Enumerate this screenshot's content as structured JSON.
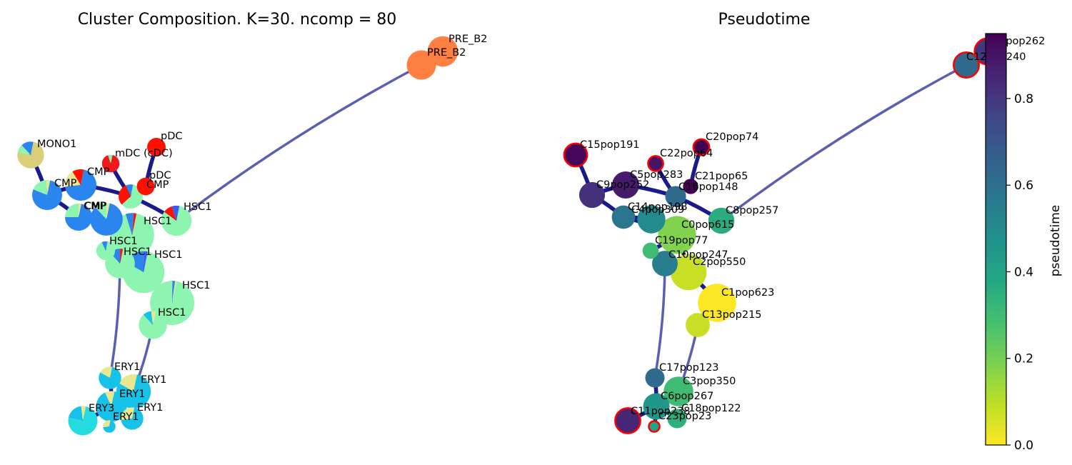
{
  "chart_data": [
    {
      "type": "graph",
      "title": "Cluster Composition. K=30. ncomp = 80",
      "legend_colors": {
        "HSC1": "#8df5b0",
        "CMP": "#2a86ee",
        "ERY1": "#16c2e8",
        "ERY3": "#26dbe0",
        "MONO1": "#d8cf78",
        "mDC (cDC)": "#f01818",
        "pDC": "#ff1000",
        "PRE_B2": "#ff8040",
        "other_blue": "#3a5cf0",
        "other_yellow": "#e8e890"
      },
      "nodes": [
        {
          "id": "C0",
          "label": "HSC1",
          "size": 615,
          "composition": [
            [
              "HSC1",
              0.92
            ],
            [
              "CMP",
              0.06
            ],
            [
              "pDC",
              0.02
            ]
          ]
        },
        {
          "id": "C1",
          "label": "HSC1",
          "size": 623,
          "composition": [
            [
              "HSC1",
              0.97
            ],
            [
              "CMP",
              0.02
            ],
            [
              "other_yellow",
              0.01
            ]
          ]
        },
        {
          "id": "C2",
          "label": "HSC1",
          "size": 550,
          "composition": [
            [
              "HSC1",
              0.8
            ],
            [
              "CMP",
              0.17
            ],
            [
              "other_blue",
              0.03
            ]
          ]
        },
        {
          "id": "C3",
          "label": "ERY1",
          "size": 350,
          "composition": [
            [
              "ERY1",
              0.8
            ],
            [
              "other_yellow",
              0.2
            ]
          ]
        },
        {
          "id": "C4",
          "label": "CMP",
          "size": 309,
          "composition": [
            [
              "CMP",
              0.85
            ],
            [
              "HSC1",
              0.12
            ],
            [
              "other_yellow",
              0.03
            ]
          ]
        },
        {
          "id": "C5",
          "label": "CMP",
          "size": 283,
          "composition": [
            [
              "CMP",
              0.7
            ],
            [
              "other_yellow",
              0.18
            ],
            [
              "pDC",
              0.12
            ]
          ]
        },
        {
          "id": "C6",
          "label": "ERY1",
          "size": 267,
          "composition": [
            [
              "ERY1",
              0.9
            ],
            [
              "other_yellow",
              0.1
            ]
          ]
        },
        {
          "id": "C7",
          "label": "PRE_B2",
          "size": 262,
          "composition": [
            [
              "PRE_B2",
              1.0
            ]
          ]
        },
        {
          "id": "C8",
          "label": "HSC1",
          "size": 257,
          "composition": [
            [
              "HSC1",
              0.82
            ],
            [
              "pDC",
              0.1
            ],
            [
              "other_blue",
              0.08
            ]
          ]
        },
        {
          "id": "C9",
          "label": "CMP",
          "size": 252,
          "composition": [
            [
              "CMP",
              0.78
            ],
            [
              "HSC1",
              0.18
            ],
            [
              "other_yellow",
              0.04
            ]
          ]
        },
        {
          "id": "C10",
          "label": "HSC1",
          "size": 247,
          "composition": [
            [
              "HSC1",
              0.85
            ],
            [
              "CMP",
              0.12
            ],
            [
              "pDC",
              0.03
            ]
          ]
        },
        {
          "id": "C11",
          "label": "ERY3",
          "size": 238,
          "composition": [
            [
              "ERY3",
              0.75
            ],
            [
              "ERY1",
              0.2
            ],
            [
              "other_yellow",
              0.05
            ]
          ]
        },
        {
          "id": "C12",
          "label": "PRE_B2",
          "size": 240,
          "composition": [
            [
              "PRE_B2",
              1.0
            ]
          ]
        },
        {
          "id": "C13",
          "label": "HSC1",
          "size": 215,
          "composition": [
            [
              "HSC1",
              0.85
            ],
            [
              "ERY1",
              0.1
            ],
            [
              "other_yellow",
              0.05
            ]
          ]
        },
        {
          "id": "C14",
          "label": "CMP",
          "size": 198,
          "composition": [
            [
              "CMP",
              0.72
            ],
            [
              "HSC1",
              0.25
            ],
            [
              "other_yellow",
              0.03
            ]
          ]
        },
        {
          "id": "C15",
          "label": "MONO1",
          "size": 191,
          "composition": [
            [
              "MONO1",
              0.75
            ],
            [
              "HSC1",
              0.1
            ],
            [
              "CMP",
              0.15
            ]
          ]
        },
        {
          "id": "C16",
          "label": "CMP",
          "size": 148,
          "composition": [
            [
              "HSC1",
              0.6
            ],
            [
              "pDC",
              0.3
            ],
            [
              "CMP",
              0.1
            ]
          ]
        },
        {
          "id": "C17",
          "label": "ERY1",
          "size": 123,
          "composition": [
            [
              "ERY1",
              0.8
            ],
            [
              "other_yellow",
              0.2
            ]
          ]
        },
        {
          "id": "C18",
          "label": "ERY1",
          "size": 122,
          "composition": [
            [
              "ERY1",
              0.7
            ],
            [
              "other_yellow",
              0.3
            ]
          ]
        },
        {
          "id": "C19",
          "label": "HSC1",
          "size": 77,
          "composition": [
            [
              "HSC1",
              0.9
            ],
            [
              "CMP",
              0.1
            ]
          ]
        },
        {
          "id": "C20",
          "label": "pDC",
          "size": 74,
          "composition": [
            [
              "pDC",
              1.0
            ]
          ]
        },
        {
          "id": "C21",
          "label": "pDC",
          "size": 65,
          "composition": [
            [
              "pDC",
              1.0
            ]
          ]
        },
        {
          "id": "C22",
          "label": "mDC (cDC)",
          "size": 64,
          "composition": [
            [
              "mDC (cDC)",
              0.92
            ],
            [
              "HSC1",
              0.08
            ]
          ]
        },
        {
          "id": "C23",
          "label": "ERY1",
          "size": 23,
          "composition": [
            [
              "ERY1",
              0.7
            ],
            [
              "other_yellow",
              0.3
            ]
          ]
        }
      ],
      "edges": [
        [
          "C15",
          "C9"
        ],
        [
          "C9",
          "C14"
        ],
        [
          "C14",
          "C4"
        ],
        [
          "C9",
          "C5"
        ],
        [
          "C5",
          "C16"
        ],
        [
          "C16",
          "C22"
        ],
        [
          "C16",
          "C21"
        ],
        [
          "C21",
          "C20"
        ],
        [
          "C16",
          "C8"
        ],
        [
          "C14",
          "C0"
        ],
        [
          "C4",
          "C0"
        ],
        [
          "C0",
          "C19"
        ],
        [
          "C0",
          "C10"
        ],
        [
          "C0",
          "C2"
        ],
        [
          "C2",
          "C1"
        ],
        [
          "C1",
          "C13"
        ],
        [
          "C13",
          "C3"
        ],
        [
          "C10",
          "C17"
        ],
        [
          "C17",
          "C6"
        ],
        [
          "C3",
          "C6"
        ],
        [
          "C6",
          "C11"
        ],
        [
          "C6",
          "C23"
        ],
        [
          "C6",
          "C18"
        ],
        [
          "C8",
          "C12"
        ],
        [
          "C12",
          "C7"
        ]
      ]
    },
    {
      "type": "graph",
      "title": "Pseudotime",
      "colorbar": {
        "label": "pseudotime",
        "ticks": [
          0.0,
          0.2,
          0.4,
          0.6,
          0.8
        ],
        "tick_labels": [
          "0.0",
          "0.2",
          "0.4",
          "0.6",
          "0.8"
        ],
        "range": [
          0.0,
          0.95
        ],
        "colormap": "viridis_r"
      },
      "terminal_highlight_color": "#ff0000",
      "nodes": [
        {
          "label": "C0pop615",
          "pseudotime": 0.18,
          "terminal": false
        },
        {
          "label": "C1pop623",
          "pseudotime": 0.0,
          "terminal": false
        },
        {
          "label": "C2pop550",
          "pseudotime": 0.08,
          "terminal": false
        },
        {
          "label": "C3pop350",
          "pseudotime": 0.3,
          "terminal": false
        },
        {
          "label": "C4pop309",
          "pseudotime": 0.5,
          "terminal": false
        },
        {
          "label": "C5pop283",
          "pseudotime": 0.88,
          "terminal": false
        },
        {
          "label": "C6pop267",
          "pseudotime": 0.45,
          "terminal": false
        },
        {
          "label": "C7pop262",
          "pseudotime": 0.8,
          "terminal": true
        },
        {
          "label": "C8pop257",
          "pseudotime": 0.36,
          "terminal": false
        },
        {
          "label": "C9pop252",
          "pseudotime": 0.82,
          "terminal": false
        },
        {
          "label": "C10pop247",
          "pseudotime": 0.55,
          "terminal": false
        },
        {
          "label": "C11pop238",
          "pseudotime": 0.85,
          "terminal": true
        },
        {
          "label": "C12pop240",
          "pseudotime": 0.62,
          "terminal": true
        },
        {
          "label": "C13pop215",
          "pseudotime": 0.08,
          "terminal": false
        },
        {
          "label": "C14pop198",
          "pseudotime": 0.58,
          "terminal": false
        },
        {
          "label": "C15pop191",
          "pseudotime": 0.93,
          "terminal": true
        },
        {
          "label": "C16pop148",
          "pseudotime": 0.62,
          "terminal": false
        },
        {
          "label": "C17pop123",
          "pseudotime": 0.62,
          "terminal": false
        },
        {
          "label": "C18pop122",
          "pseudotime": 0.35,
          "terminal": false
        },
        {
          "label": "C19pop77",
          "pseudotime": 0.3,
          "terminal": false
        },
        {
          "label": "C20pop74",
          "pseudotime": 0.95,
          "terminal": true
        },
        {
          "label": "C21pop65",
          "pseudotime": 0.95,
          "terminal": false
        },
        {
          "label": "C22pop64",
          "pseudotime": 0.9,
          "terminal": true
        },
        {
          "label": "C23pop23",
          "pseudotime": 0.4,
          "terminal": true
        }
      ]
    }
  ]
}
